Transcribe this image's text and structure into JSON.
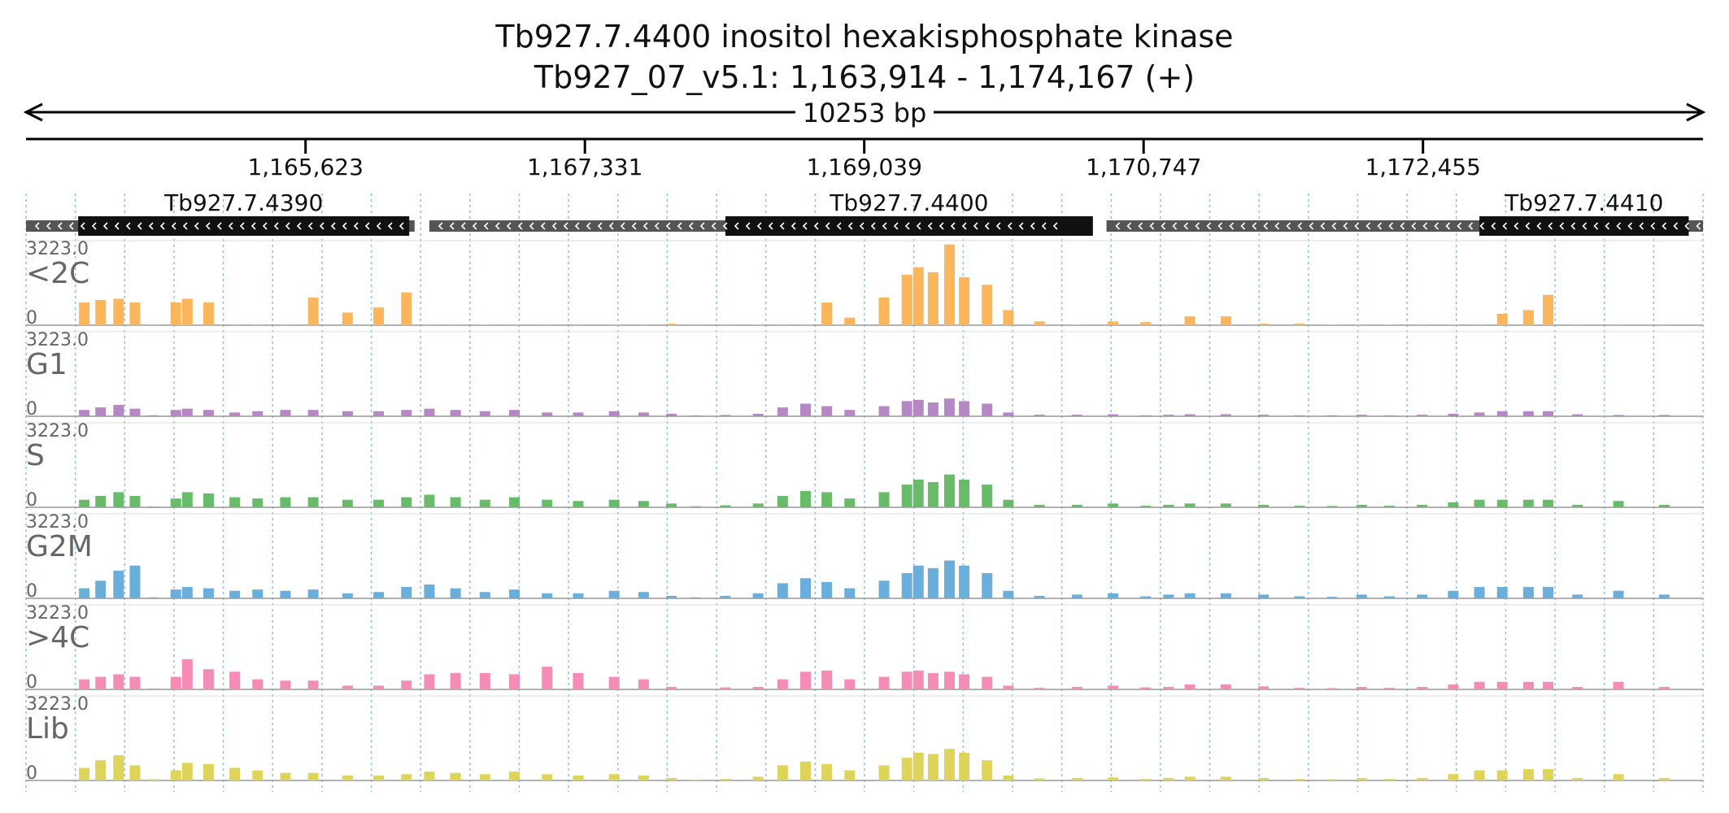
{
  "chart_data": {
    "type": "area",
    "title": "Tb927.7.4400  inositol hexakisphosphate kinase",
    "subtitle": "Tb927_07_v5.1: 1,163,914 - 1,174,167 (+)",
    "span_label": "10253 bp",
    "xlim": [
      1163914,
      1174167
    ],
    "x_ticks": [
      1165623,
      1167331,
      1169039,
      1170747,
      1172455
    ],
    "x_tick_labels": [
      "1,165,623",
      "1,167,331",
      "1,169,039",
      "1,170,747",
      "1,172,455"
    ],
    "genes": [
      {
        "name": "Tb927.7.4390",
        "strand": "-",
        "utr": [
          1163914,
          1166290
        ],
        "cds": [
          1164233,
          1166257
        ]
      },
      {
        "name": "Tb927.7.4400",
        "strand": "-",
        "utr": [
          1166380,
          1170237
        ],
        "cds": [
          1168190,
          1170437
        ]
      },
      {
        "name": "Tb927.7.4410",
        "strand": "-",
        "utr": [
          1170520,
          1174167
        ],
        "cds": [
          1172800,
          1174080
        ]
      }
    ],
    "ylim": [
      0,
      3223.0
    ],
    "y_max_label": "3223.0",
    "y_min_label": "0",
    "x": [
      1164270,
      1164370,
      1164480,
      1164580,
      1164690,
      1164830,
      1164900,
      1165030,
      1165190,
      1165330,
      1165500,
      1165670,
      1165880,
      1166070,
      1166240,
      1166380,
      1166540,
      1166720,
      1166900,
      1167100,
      1167290,
      1167510,
      1167690,
      1167860,
      1168010,
      1168190,
      1168390,
      1168540,
      1168680,
      1168810,
      1168950,
      1169160,
      1169300,
      1169370,
      1169460,
      1169560,
      1169650,
      1169790,
      1169920,
      1170110,
      1170340,
      1170560,
      1170760,
      1170900,
      1171030,
      1171250,
      1171480,
      1171700,
      1171900,
      1172080,
      1172250,
      1172450,
      1172640,
      1172800,
      1172940,
      1173100,
      1173220,
      1173400,
      1173650,
      1173930
    ],
    "series": [
      {
        "name": "<2C",
        "color": "#fbb55a",
        "values": [
          900,
          1000,
          1050,
          900,
          30,
          900,
          1050,
          900,
          20,
          20,
          20,
          1100,
          500,
          700,
          1300,
          15,
          15,
          15,
          15,
          15,
          15,
          15,
          15,
          60,
          15,
          15,
          15,
          15,
          15,
          900,
          300,
          1100,
          2000,
          2300,
          2100,
          3200,
          1900,
          1600,
          600,
          150,
          15,
          150,
          120,
          15,
          350,
          350,
          60,
          60,
          15,
          15,
          15,
          15,
          15,
          15,
          450,
          600,
          1200,
          15,
          15,
          15
        ]
      },
      {
        "name": "G1",
        "color": "#b587c4",
        "values": [
          250,
          350,
          450,
          300,
          40,
          250,
          300,
          250,
          150,
          200,
          250,
          250,
          200,
          200,
          250,
          300,
          250,
          200,
          250,
          150,
          150,
          200,
          150,
          100,
          30,
          50,
          100,
          350,
          500,
          400,
          250,
          400,
          600,
          650,
          550,
          700,
          600,
          500,
          150,
          60,
          60,
          80,
          40,
          60,
          80,
          80,
          60,
          40,
          40,
          60,
          40,
          60,
          100,
          150,
          200,
          200,
          200,
          80,
          50,
          50
        ]
      },
      {
        "name": "S",
        "color": "#68bc69",
        "values": [
          300,
          450,
          600,
          450,
          30,
          350,
          600,
          550,
          400,
          350,
          400,
          400,
          300,
          300,
          400,
          500,
          400,
          300,
          400,
          300,
          250,
          300,
          250,
          150,
          40,
          80,
          150,
          450,
          650,
          600,
          350,
          600,
          900,
          1100,
          1000,
          1300,
          1100,
          900,
          300,
          100,
          100,
          150,
          60,
          100,
          150,
          150,
          100,
          60,
          50,
          100,
          60,
          100,
          200,
          300,
          300,
          300,
          300,
          100,
          250,
          100
        ]
      },
      {
        "name": "G2M",
        "color": "#6aaedb",
        "values": [
          400,
          700,
          1100,
          1300,
          40,
          350,
          450,
          400,
          300,
          350,
          300,
          350,
          200,
          250,
          450,
          550,
          400,
          250,
          350,
          200,
          200,
          300,
          250,
          100,
          40,
          100,
          200,
          600,
          800,
          650,
          400,
          700,
          1000,
          1300,
          1200,
          1500,
          1300,
          1000,
          300,
          100,
          150,
          200,
          80,
          150,
          200,
          200,
          150,
          80,
          60,
          150,
          80,
          150,
          300,
          450,
          450,
          450,
          450,
          150,
          300,
          150
        ]
      },
      {
        "name": ">4C",
        "color": "#f48cb6",
        "values": [
          400,
          500,
          600,
          500,
          40,
          500,
          1200,
          800,
          700,
          400,
          350,
          350,
          150,
          150,
          350,
          600,
          650,
          650,
          600,
          900,
          650,
          500,
          400,
          100,
          30,
          80,
          100,
          400,
          700,
          750,
          400,
          500,
          700,
          750,
          650,
          700,
          600,
          500,
          150,
          60,
          100,
          150,
          80,
          100,
          200,
          200,
          120,
          60,
          50,
          100,
          60,
          100,
          200,
          300,
          300,
          300,
          300,
          100,
          300,
          100
        ]
      },
      {
        "name": "Lib",
        "color": "#dfd45a",
        "values": [
          500,
          800,
          1000,
          600,
          50,
          400,
          700,
          650,
          500,
          400,
          300,
          300,
          200,
          200,
          250,
          350,
          300,
          250,
          350,
          250,
          200,
          250,
          200,
          100,
          40,
          60,
          150,
          600,
          750,
          650,
          400,
          600,
          900,
          1100,
          1050,
          1250,
          1100,
          800,
          200,
          80,
          100,
          120,
          60,
          100,
          150,
          150,
          100,
          60,
          50,
          100,
          60,
          100,
          250,
          400,
          400,
          450,
          450,
          100,
          250,
          100
        ]
      }
    ],
    "grid": true
  }
}
